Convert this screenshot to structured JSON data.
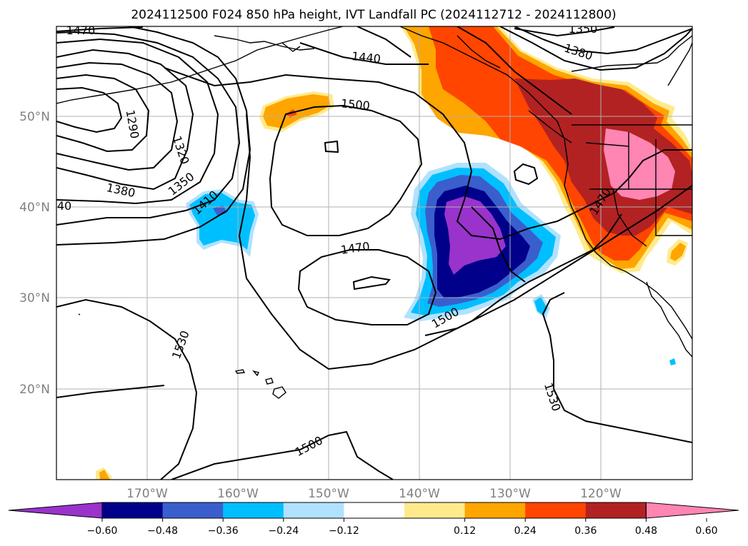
{
  "title": "2024112500 F024 850 hPa height, IVT Landfall PC (2024112712 - 2024112800)",
  "lat_labels": [
    "50°N",
    "40°N",
    "30°N",
    "20°N"
  ],
  "lon_labels": [
    "170°W",
    "160°W",
    "150°W",
    "140°W",
    "130°W",
    "120°W"
  ],
  "contour_labels": [
    "1470",
    "1440",
    "1500",
    "1350",
    "1380",
    "1290",
    "1320",
    "1350",
    "1380",
    "1410",
    "40",
    "1470",
    "1470",
    "1500",
    "1530",
    "1530",
    "1500"
  ],
  "colorbar": {
    "tick_labels": [
      "−0.60",
      "−0.48",
      "−0.36",
      "−0.24",
      "−0.12",
      "0.12",
      "0.24",
      "0.36",
      "0.48",
      "0.60"
    ],
    "colors": [
      "#9933cc",
      "#00008b",
      "#3a5fcd",
      "#00bfff",
      "#b0e2ff",
      "#ffffff",
      "#ffeb8c",
      "#ffa500",
      "#ff4500",
      "#b22222",
      "#ff85b3"
    ]
  },
  "colors": {
    "purple": "#9933cc",
    "navy": "#00008b",
    "royal": "#3a5fcd",
    "sky": "#00bfff",
    "lightsky": "#b0e2ff",
    "lightyellow": "#ffeb8c",
    "orange": "#ffa500",
    "orangered": "#ff4500",
    "firebrick": "#b22222",
    "pink": "#ff85b3"
  }
}
